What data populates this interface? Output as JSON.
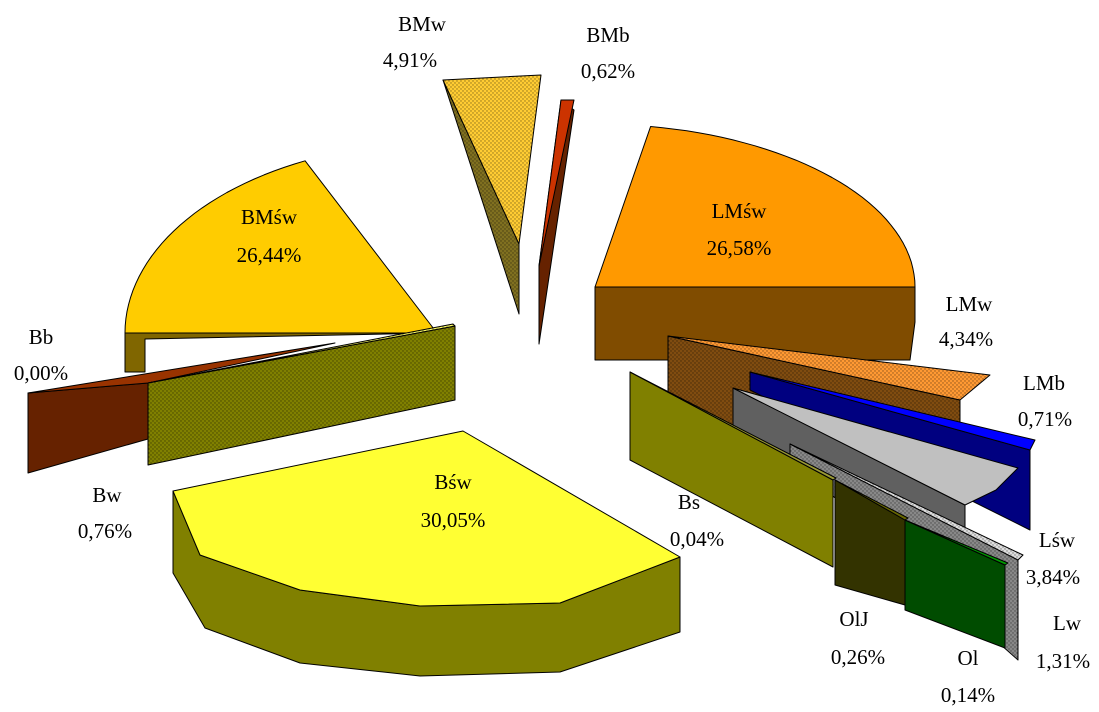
{
  "chart_data": {
    "type": "pie",
    "title": "",
    "slices": [
      {
        "label": "Bśw",
        "value": "30,05%",
        "pct": 30.05,
        "color": "#FFFF33",
        "side": "#808000",
        "pattern": false
      },
      {
        "label": "BMśw",
        "value": "26,44%",
        "pct": 26.44,
        "color": "#FFCC00",
        "side": "#806600",
        "pattern": false
      },
      {
        "label": "LMśw",
        "value": "26,58%",
        "pct": 26.58,
        "color": "#FF9900",
        "side": "#804C00",
        "pattern": false
      },
      {
        "label": "BMw",
        "value": "4,91%",
        "pct": 4.91,
        "color": "#FFCC33",
        "side": "#807020",
        "pattern": true
      },
      {
        "label": "LMw",
        "value": "4,34%",
        "pct": 4.34,
        "color": "#FF9933",
        "side": "#804C10",
        "pattern": true
      },
      {
        "label": "Lśw",
        "value": "3,84%",
        "pct": 3.84,
        "color": "#C0C0C0",
        "side": "#606060",
        "pattern": false
      },
      {
        "label": "Lw",
        "value": "1,31%",
        "pct": 1.31,
        "color": "#DDDDDD",
        "side": "#888888",
        "pattern": true
      },
      {
        "label": "Bw",
        "value": "0,76%",
        "pct": 0.76,
        "color": "#FFFF66",
        "side": "#808000",
        "pattern": true
      },
      {
        "label": "LMb",
        "value": "0,71%",
        "pct": 0.71,
        "color": "#0000FF",
        "side": "#000080",
        "pattern": false
      },
      {
        "label": "BMb",
        "value": "0,62%",
        "pct": 0.62,
        "color": "#CC3300",
        "side": "#662200",
        "pattern": false
      },
      {
        "label": "OlJ",
        "value": "0,26%",
        "pct": 0.26,
        "color": "#666600",
        "side": "#333300",
        "pattern": false
      },
      {
        "label": "Ol",
        "value": "0,14%",
        "pct": 0.14,
        "color": "#009900",
        "side": "#004C00",
        "pattern": false
      },
      {
        "label": "Bs",
        "value": "0,04%",
        "pct": 0.04,
        "color": "#999933",
        "side": "#808000",
        "pattern": false
      },
      {
        "label": "Bb",
        "value": "0,00%",
        "pct": 0.0,
        "color": "#993300",
        "side": "#662200",
        "pattern": false
      }
    ]
  }
}
